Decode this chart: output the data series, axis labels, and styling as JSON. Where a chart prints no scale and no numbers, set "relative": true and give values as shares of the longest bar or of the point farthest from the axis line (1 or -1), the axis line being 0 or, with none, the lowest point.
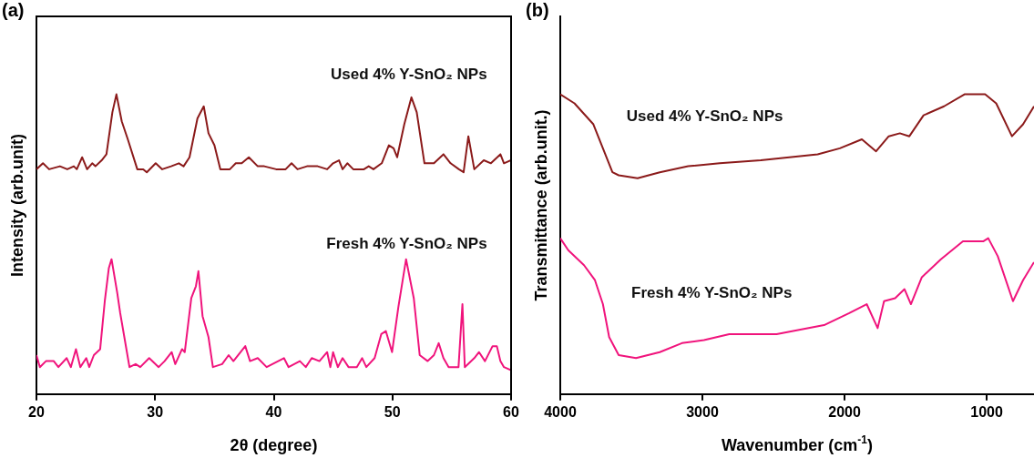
{
  "chart_data": [
    {
      "type": "line",
      "title": "(a)",
      "xlabel": "2θ (degree)",
      "ylabel": "Intensity (arb.unit)",
      "relative": true,
      "xlim": [
        20,
        60
      ],
      "xticks": [
        20,
        30,
        40,
        50,
        60
      ],
      "marker": "none",
      "series": [
        {
          "name": "Used 4% Y-SnO₂ NPs",
          "color": "#8b1a1a",
          "x": [
            20.0,
            20.55,
            21.07,
            21.98,
            22.6,
            23.15,
            23.4,
            23.85,
            24.27,
            24.7,
            24.97,
            25.5,
            25.9,
            26.4,
            26.74,
            27.19,
            27.7,
            28.5,
            29.0,
            29.3,
            30.05,
            30.6,
            31.35,
            32.0,
            32.4,
            32.9,
            33.57,
            34.1,
            34.5,
            35.0,
            35.5,
            36.3,
            36.8,
            37.3,
            37.9,
            38.65,
            39.2,
            40.2,
            41.0,
            41.5,
            42.0,
            42.8,
            43.7,
            44.5,
            45.0,
            45.5,
            45.8,
            46.2,
            46.7,
            47.6,
            48.0,
            48.4,
            49.1,
            49.7,
            50.1,
            50.4,
            51.0,
            51.6,
            52.05,
            52.7,
            53.5,
            54.3,
            54.9,
            55.6,
            56.0,
            56.4,
            56.9,
            57.7,
            58.3,
            59.1,
            59.4,
            60.0
          ],
          "values": [
            0.75,
            0.77,
            0.75,
            0.76,
            0.75,
            0.76,
            0.75,
            0.79,
            0.75,
            0.77,
            0.76,
            0.78,
            0.8,
            0.94,
            1.0,
            0.91,
            0.85,
            0.75,
            0.75,
            0.74,
            0.77,
            0.75,
            0.76,
            0.77,
            0.76,
            0.79,
            0.92,
            0.96,
            0.87,
            0.83,
            0.75,
            0.75,
            0.77,
            0.77,
            0.79,
            0.76,
            0.76,
            0.75,
            0.75,
            0.77,
            0.75,
            0.76,
            0.76,
            0.75,
            0.77,
            0.78,
            0.75,
            0.77,
            0.75,
            0.75,
            0.76,
            0.75,
            0.77,
            0.83,
            0.82,
            0.79,
            0.9,
            0.99,
            0.94,
            0.77,
            0.77,
            0.8,
            0.77,
            0.75,
            0.74,
            0.86,
            0.75,
            0.78,
            0.77,
            0.8,
            0.77,
            0.78
          ]
        },
        {
          "name": "Fresh 4% Y-SnO₂ NPs",
          "color": "#f0147c",
          "x": [
            20.0,
            20.29,
            20.8,
            21.46,
            21.85,
            22.55,
            22.9,
            23.33,
            23.7,
            24.2,
            24.45,
            24.84,
            25.37,
            25.76,
            26.1,
            26.33,
            26.8,
            27.06,
            27.45,
            27.84,
            28.36,
            28.75,
            29.5,
            30.3,
            30.8,
            31.4,
            31.7,
            32.27,
            32.5,
            33.05,
            33.44,
            33.65,
            34.0,
            34.5,
            34.87,
            35.65,
            36.2,
            36.6,
            37.6,
            38.0,
            38.65,
            39.4,
            40.86,
            41.25,
            42.2,
            42.7,
            43.2,
            43.85,
            44.5,
            44.77,
            45.0,
            45.4,
            45.8,
            46.3,
            47.0,
            47.45,
            47.8,
            48.5,
            49.06,
            49.45,
            49.97,
            50.5,
            51.15,
            51.8,
            52.3,
            52.97,
            53.5,
            53.9,
            54.3,
            54.74,
            55.57,
            55.9,
            56.1,
            56.9,
            57.3,
            57.8,
            58.44,
            58.8,
            59.1,
            59.4,
            60.0
          ],
          "values": [
            0.13,
            0.09,
            0.11,
            0.11,
            0.09,
            0.12,
            0.09,
            0.15,
            0.09,
            0.12,
            0.09,
            0.13,
            0.15,
            0.31,
            0.42,
            0.45,
            0.34,
            0.27,
            0.18,
            0.09,
            0.1,
            0.09,
            0.12,
            0.09,
            0.11,
            0.14,
            0.1,
            0.15,
            0.14,
            0.32,
            0.36,
            0.41,
            0.26,
            0.19,
            0.09,
            0.1,
            0.13,
            0.11,
            0.16,
            0.11,
            0.12,
            0.09,
            0.12,
            0.09,
            0.11,
            0.09,
            0.12,
            0.11,
            0.14,
            0.09,
            0.14,
            0.09,
            0.12,
            0.09,
            0.09,
            0.12,
            0.09,
            0.12,
            0.2,
            0.21,
            0.14,
            0.29,
            0.45,
            0.32,
            0.13,
            0.11,
            0.13,
            0.17,
            0.12,
            0.09,
            0.09,
            0.3,
            0.09,
            0.12,
            0.14,
            0.11,
            0.16,
            0.16,
            0.11,
            0.09,
            0.08
          ]
        }
      ]
    },
    {
      "type": "line",
      "title": "(b)",
      "xlabel": "Wavenumber (cm$^{-1}$)",
      "ylabel": "Transmittance (arb.unit.)",
      "relative": true,
      "xlim": [
        4000,
        667
      ],
      "xticks": [
        4000,
        3000,
        2000,
        1000
      ],
      "marker": "none",
      "series": [
        {
          "name": "Used 4% Y-SnO₂ NPs",
          "color": "#8b1a1a",
          "x": [
            4000,
            3900,
            3767,
            3700,
            3633,
            3589,
            3456,
            3300,
            3100,
            2878,
            2589,
            2189,
            2033,
            1878,
            1778,
            1689,
            1611,
            1544,
            1444,
            1300,
            1156,
            1011,
            933,
            822,
            744,
            667
          ],
          "values": [
            1.0,
            0.97,
            0.9,
            0.82,
            0.74,
            0.73,
            0.72,
            0.74,
            0.76,
            0.77,
            0.78,
            0.8,
            0.82,
            0.85,
            0.81,
            0.86,
            0.87,
            0.86,
            0.93,
            0.96,
            1.0,
            1.0,
            0.97,
            0.86,
            0.9,
            0.96
          ]
        },
        {
          "name": "Fresh 4% Y-SnO₂ NPs",
          "color": "#f0147c",
          "x": [
            4000,
            3944,
            3833,
            3756,
            3700,
            3656,
            3589,
            3467,
            3300,
            3144,
            2989,
            2811,
            2478,
            2144,
            1967,
            1844,
            1767,
            1722,
            1644,
            1578,
            1533,
            1456,
            1322,
            1167,
            1022,
            989,
            922,
            815,
            744,
            667
          ],
          "values": [
            0.52,
            0.48,
            0.43,
            0.38,
            0.3,
            0.19,
            0.13,
            0.12,
            0.14,
            0.17,
            0.18,
            0.2,
            0.2,
            0.23,
            0.27,
            0.3,
            0.22,
            0.31,
            0.32,
            0.35,
            0.3,
            0.39,
            0.45,
            0.51,
            0.51,
            0.52,
            0.46,
            0.31,
            0.38,
            0.44
          ]
        }
      ]
    }
  ]
}
